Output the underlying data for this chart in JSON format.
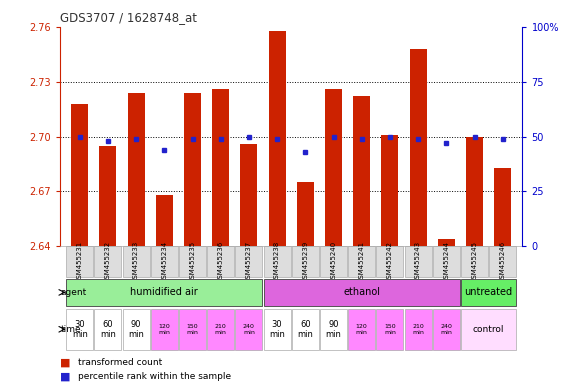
{
  "title": "GDS3707 / 1628748_at",
  "samples": [
    "GSM455231",
    "GSM455232",
    "GSM455233",
    "GSM455234",
    "GSM455235",
    "GSM455236",
    "GSM455237",
    "GSM455238",
    "GSM455239",
    "GSM455240",
    "GSM455241",
    "GSM455242",
    "GSM455243",
    "GSM455244",
    "GSM455245",
    "GSM455246"
  ],
  "red_values": [
    2.718,
    2.695,
    2.724,
    2.668,
    2.724,
    2.726,
    2.696,
    2.758,
    2.675,
    2.726,
    2.722,
    2.701,
    2.748,
    2.644,
    2.7,
    2.683
  ],
  "blue_values_pct": [
    50,
    48,
    49,
    44,
    49,
    49,
    50,
    49,
    43,
    50,
    49,
    50,
    49,
    47,
    50,
    49
  ],
  "ymin": 2.64,
  "ymax": 2.76,
  "yticks_left": [
    2.64,
    2.67,
    2.7,
    2.73,
    2.76
  ],
  "yticks_right": [
    0,
    25,
    50,
    75,
    100
  ],
  "bar_color": "#cc2200",
  "blue_color": "#2222cc",
  "agent_labels": [
    "humidified air",
    "ethanol",
    "untreated"
  ],
  "agent_starts": [
    0,
    7,
    14
  ],
  "agent_counts": [
    7,
    7,
    2
  ],
  "agent_colors": [
    "#99ee99",
    "#dd66dd",
    "#66ee66"
  ],
  "time_labels_14": [
    "30\nmin",
    "60\nmin",
    "90\nmin",
    "120\nmin",
    "150\nmin",
    "210\nmin",
    "240\nmin",
    "30\nmin",
    "60\nmin",
    "90\nmin",
    "120\nmin",
    "150\nmin",
    "210\nmin",
    "240\nmin"
  ],
  "time_colors_14": [
    "#ffffff",
    "#ffffff",
    "#ffffff",
    "#ff88ff",
    "#ff88ff",
    "#ff88ff",
    "#ff88ff",
    "#ffffff",
    "#ffffff",
    "#ffffff",
    "#ff88ff",
    "#ff88ff",
    "#ff88ff",
    "#ff88ff"
  ],
  "time_small": [
    false,
    false,
    false,
    true,
    true,
    true,
    true,
    false,
    false,
    false,
    true,
    true,
    true,
    true
  ],
  "control_label": "control",
  "control_color": "#ffddff",
  "legend_red": "transformed count",
  "legend_blue": "percentile rank within the sample",
  "agent_label": "agent",
  "time_label": "time",
  "grid_yticks": [
    2.67,
    2.7,
    2.73
  ],
  "left_axis_color": "#cc2200",
  "right_axis_color": "#0000cc",
  "sample_box_color": "#dddddd",
  "title_color": "#333333"
}
